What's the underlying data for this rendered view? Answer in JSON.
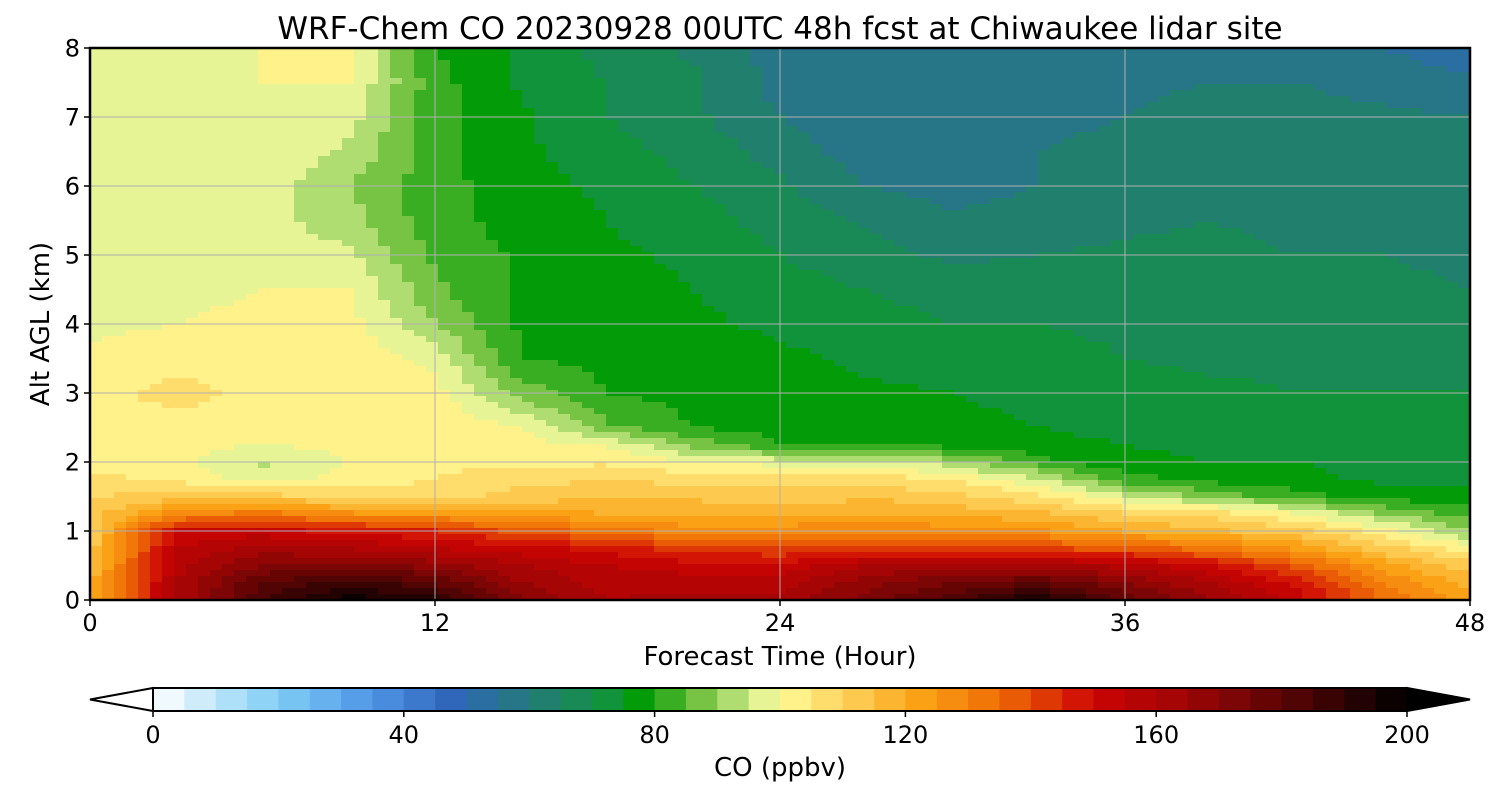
{
  "chart_data": {
    "type": "heatmap",
    "title": "WRF-Chem CO  20230928 00UTC 48h fcst at Chiwaukee lidar site",
    "xlabel": "Forecast Time (Hour)",
    "ylabel": "Alt AGL (km)",
    "xlim": [
      0,
      48
    ],
    "ylim": [
      0,
      8
    ],
    "xticks": [
      0,
      12,
      24,
      36,
      48
    ],
    "yticks": [
      0,
      1,
      2,
      3,
      4,
      5,
      6,
      7,
      8
    ],
    "grid": true,
    "colorbar": {
      "label": "CO  (ppbv)",
      "min": 0,
      "max": 200,
      "ticks": [
        0,
        40,
        80,
        120,
        160,
        200
      ],
      "extend": "both",
      "orientation": "horizontal",
      "colors": [
        {
          "v": 0,
          "c": "#ffffff"
        },
        {
          "v": 20,
          "c": "#7fcdf5"
        },
        {
          "v": 35,
          "c": "#4f95e6"
        },
        {
          "v": 47,
          "c": "#3066bd"
        },
        {
          "v": 60,
          "c": "#257a7a"
        },
        {
          "v": 72,
          "c": "#129241"
        },
        {
          "v": 78,
          "c": "#039c03"
        },
        {
          "v": 88,
          "c": "#7dc547"
        },
        {
          "v": 96,
          "c": "#d7ef92"
        },
        {
          "v": 100,
          "c": "#fffc9a"
        },
        {
          "v": 110,
          "c": "#fdd35c"
        },
        {
          "v": 122,
          "c": "#fba317"
        },
        {
          "v": 135,
          "c": "#f06d06"
        },
        {
          "v": 150,
          "c": "#cc0303"
        },
        {
          "v": 165,
          "c": "#9d0505"
        },
        {
          "v": 180,
          "c": "#5b0404"
        },
        {
          "v": 200,
          "c": "#000000"
        }
      ]
    },
    "rows_alt_km": [
      0,
      0.25,
      0.5,
      0.75,
      1,
      1.25,
      1.5,
      1.75,
      2,
      2.25,
      2.5,
      3,
      3.5,
      4,
      4.5,
      5,
      5.5,
      6,
      6.5,
      7,
      7.5,
      8
    ],
    "cols_hour": [
      0,
      3,
      6,
      9,
      12,
      15,
      18,
      21,
      24,
      27,
      30,
      33,
      36,
      39,
      42,
      45,
      48
    ],
    "values_ppbv": [
      [
        120,
        160,
        185,
        198,
        192,
        170,
        160,
        162,
        162,
        172,
        182,
        196,
        178,
        165,
        152,
        135,
        122
      ],
      [
        118,
        160,
        180,
        188,
        180,
        165,
        158,
        158,
        158,
        168,
        175,
        180,
        170,
        160,
        148,
        130,
        118
      ],
      [
        115,
        158,
        170,
        172,
        168,
        160,
        155,
        152,
        152,
        160,
        162,
        162,
        158,
        150,
        138,
        122,
        112
      ],
      [
        112,
        155,
        162,
        160,
        155,
        152,
        148,
        142,
        140,
        142,
        142,
        140,
        138,
        132,
        124,
        112,
        102
      ],
      [
        112,
        150,
        152,
        148,
        145,
        138,
        132,
        128,
        128,
        130,
        128,
        126,
        120,
        116,
        112,
        102,
        90
      ],
      [
        112,
        128,
        132,
        126,
        124,
        122,
        120,
        118,
        118,
        120,
        118,
        116,
        110,
        108,
        100,
        90,
        82
      ],
      [
        110,
        112,
        112,
        108,
        108,
        112,
        114,
        114,
        112,
        114,
        112,
        106,
        96,
        88,
        82,
        78,
        76
      ],
      [
        106,
        104,
        98,
        102,
        105,
        108,
        110,
        108,
        108,
        108,
        104,
        96,
        82,
        78,
        76,
        74,
        74
      ],
      [
        104,
        102,
        94,
        100,
        104,
        104,
        104,
        100,
        98,
        98,
        92,
        82,
        76,
        75,
        75,
        74,
        74
      ],
      [
        104,
        102,
        100,
        102,
        104,
        102,
        100,
        88,
        80,
        80,
        78,
        76,
        75,
        74,
        74,
        73,
        72
      ],
      [
        104,
        104,
        104,
        104,
        104,
        100,
        86,
        80,
        78,
        77,
        76,
        75,
        74,
        73,
        72,
        72,
        72
      ],
      [
        104,
        106,
        104,
        104,
        102,
        88,
        80,
        78,
        77,
        76,
        75,
        74,
        72,
        71,
        70,
        70,
        70
      ],
      [
        102,
        104,
        104,
        104,
        98,
        80,
        78,
        77,
        76,
        74,
        72,
        72,
        70,
        69,
        69,
        68,
        68
      ],
      [
        98,
        100,
        102,
        102,
        90,
        79,
        78,
        76,
        74,
        72,
        70,
        70,
        69,
        68,
        67,
        67,
        66
      ],
      [
        96,
        98,
        100,
        100,
        86,
        79,
        77,
        75,
        72,
        70,
        68,
        68,
        67,
        67,
        66,
        66,
        65
      ],
      [
        96,
        98,
        98,
        96,
        84,
        79,
        76,
        74,
        70,
        67,
        64,
        65,
        66,
        66,
        65,
        65,
        64
      ],
      [
        97,
        98,
        97,
        92,
        82,
        78,
        75,
        72,
        68,
        64,
        61,
        62,
        64,
        65,
        64,
        64,
        63
      ],
      [
        98,
        99,
        98,
        90,
        82,
        77,
        74,
        70,
        66,
        60,
        58,
        60,
        63,
        64,
        64,
        63,
        62
      ],
      [
        98,
        100,
        100,
        94,
        82,
        76,
        72,
        68,
        63,
        57,
        56,
        60,
        62,
        63,
        63,
        62,
        61
      ],
      [
        96,
        98,
        99,
        97,
        82,
        76,
        70,
        66,
        60,
        56,
        56,
        58,
        60,
        62,
        62,
        61,
        60
      ],
      [
        97,
        98,
        100,
        100,
        82,
        74,
        70,
        66,
        58,
        55,
        56,
        57,
        59,
        60,
        60,
        58,
        56
      ],
      [
        98,
        99,
        100,
        101,
        80,
        74,
        68,
        64,
        58,
        55,
        55,
        57,
        59,
        59,
        57,
        55,
        52
      ]
    ]
  }
}
